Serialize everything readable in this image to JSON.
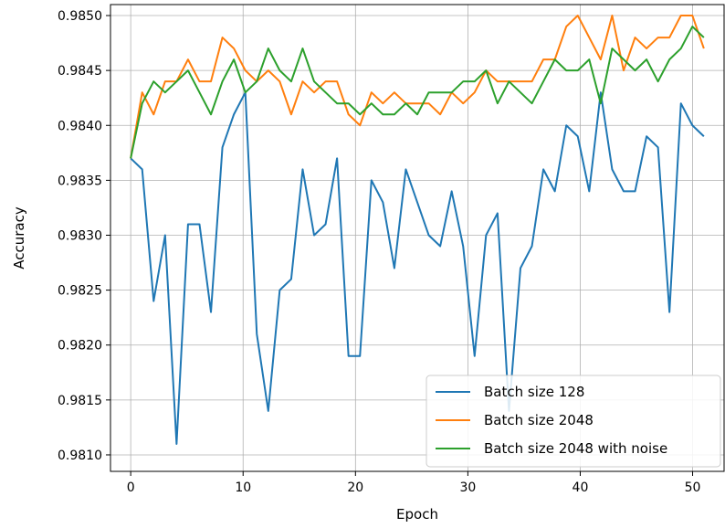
{
  "chart_data": {
    "type": "line",
    "xlabel": "Epoch",
    "ylabel": "Accuracy",
    "xlim": [
      -1.8,
      52.8
    ],
    "ylim": [
      0.98085,
      0.9851
    ],
    "xticks": [
      0,
      10,
      20,
      30,
      40,
      50
    ],
    "yticks": [
      0.981,
      0.9815,
      0.982,
      0.9825,
      0.983,
      0.9835,
      0.984,
      0.9845,
      0.985
    ],
    "grid": true,
    "legend_position": "bottom-right",
    "x": [
      0,
      1.02,
      2.04,
      3.06,
      4.08,
      5.1,
      6.12,
      7.14,
      8.16,
      9.18,
      10.2,
      11.22,
      12.24,
      13.26,
      14.28,
      15.3,
      16.32,
      17.34,
      18.36,
      19.38,
      20.4,
      21.42,
      22.44,
      23.46,
      24.48,
      25.5,
      26.52,
      27.54,
      28.56,
      29.58,
      30.6,
      31.62,
      32.64,
      33.66,
      34.68,
      35.7,
      36.72,
      37.74,
      38.76,
      39.78,
      40.8,
      41.82,
      42.84,
      43.86,
      44.88,
      45.9,
      46.92,
      47.94,
      48.96,
      49.98,
      51
    ],
    "series": [
      {
        "name": "Batch size 128",
        "color": "#1f77b4",
        "values": [
          0.9837,
          0.9836,
          0.9824,
          0.983,
          0.9811,
          0.9831,
          0.9831,
          0.9823,
          0.9838,
          0.9841,
          0.9843,
          0.9821,
          0.9814,
          0.9825,
          0.9826,
          0.9836,
          0.983,
          0.9831,
          0.9837,
          0.9819,
          0.9819,
          0.9835,
          0.9833,
          0.9827,
          0.9836,
          0.9833,
          0.983,
          0.9829,
          0.9834,
          0.9829,
          0.9819,
          0.983,
          0.9832,
          0.9814,
          0.9827,
          0.9829,
          0.9836,
          0.9834,
          0.984,
          0.9839,
          0.9834,
          0.9843,
          0.9836,
          0.9834,
          0.9834,
          0.9839,
          0.9838,
          0.9823,
          0.9842,
          0.984,
          0.9839
        ]
      },
      {
        "name": "Batch size 2048",
        "color": "#ff7f0e",
        "values": [
          0.9837,
          0.9843,
          0.9841,
          0.9844,
          0.9844,
          0.9846,
          0.9844,
          0.9844,
          0.9848,
          0.9847,
          0.9845,
          0.9844,
          0.9845,
          0.9844,
          0.9841,
          0.9844,
          0.9843,
          0.9844,
          0.9844,
          0.9841,
          0.984,
          0.9843,
          0.9842,
          0.9843,
          0.9842,
          0.9842,
          0.9842,
          0.9841,
          0.9843,
          0.9842,
          0.9843,
          0.9845,
          0.9844,
          0.9844,
          0.9844,
          0.9844,
          0.9846,
          0.9846,
          0.9849,
          0.985,
          0.9848,
          0.9846,
          0.985,
          0.9845,
          0.9848,
          0.9847,
          0.9848,
          0.9848,
          0.985,
          0.985,
          0.9847
        ]
      },
      {
        "name": "Batch size 2048 with noise",
        "color": "#2ca02c",
        "values": [
          0.9837,
          0.9842,
          0.9844,
          0.9843,
          0.9844,
          0.9845,
          0.9843,
          0.9841,
          0.9844,
          0.9846,
          0.9843,
          0.9844,
          0.9847,
          0.9845,
          0.9844,
          0.9847,
          0.9844,
          0.9843,
          0.9842,
          0.9842,
          0.9841,
          0.9842,
          0.9841,
          0.9841,
          0.9842,
          0.9841,
          0.9843,
          0.9843,
          0.9843,
          0.9844,
          0.9844,
          0.9845,
          0.9842,
          0.9844,
          0.9843,
          0.9842,
          0.9844,
          0.9846,
          0.9845,
          0.9845,
          0.9846,
          0.9842,
          0.9847,
          0.9846,
          0.9845,
          0.9846,
          0.9844,
          0.9846,
          0.9847,
          0.9849,
          0.9848
        ]
      }
    ]
  }
}
